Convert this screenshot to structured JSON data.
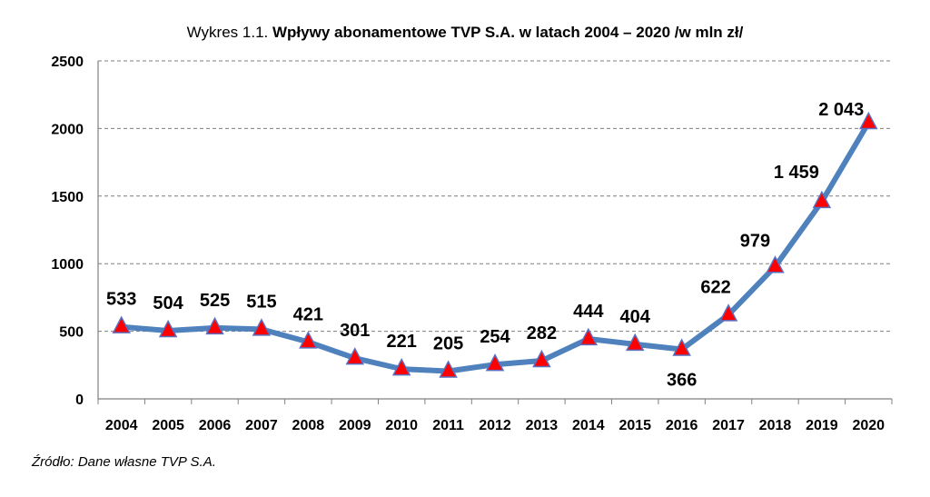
{
  "chart_data": {
    "type": "line",
    "title_prefix": "Wykres 1.1.",
    "title": "Wpływy abonamentowe TVP S.A. w latach 2004 – 2020 /w mln zł/",
    "xlabel": "",
    "ylabel": "",
    "categories": [
      "2004",
      "2005",
      "2006",
      "2007",
      "2008",
      "2009",
      "2010",
      "2011",
      "2012",
      "2013",
      "2014",
      "2015",
      "2016",
      "2017",
      "2018",
      "2019",
      "2020"
    ],
    "series": [
      {
        "values": [
          533,
          504,
          525,
          515,
          421,
          301,
          221,
          205,
          254,
          282,
          444,
          404,
          366,
          622,
          979,
          1459,
          2043
        ],
        "labels": [
          "533",
          "504",
          "525",
          "515",
          "421",
          "301",
          "221",
          "205",
          "254",
          "282",
          "444",
          "404",
          "366",
          "622",
          "979",
          "1 459",
          "2 043"
        ]
      }
    ],
    "ylim": [
      0,
      2500
    ],
    "yticks": [
      "0",
      "500",
      "1000",
      "1500",
      "2000",
      "2500"
    ],
    "grid": true,
    "legend": "none",
    "colors": {
      "line": "#4f81bd",
      "marker": "#ff0000",
      "marker_edge": "#5a6fbf",
      "grid": "#7f7f7f"
    }
  },
  "source_note": "Źródło: Dane własne TVP S.A."
}
